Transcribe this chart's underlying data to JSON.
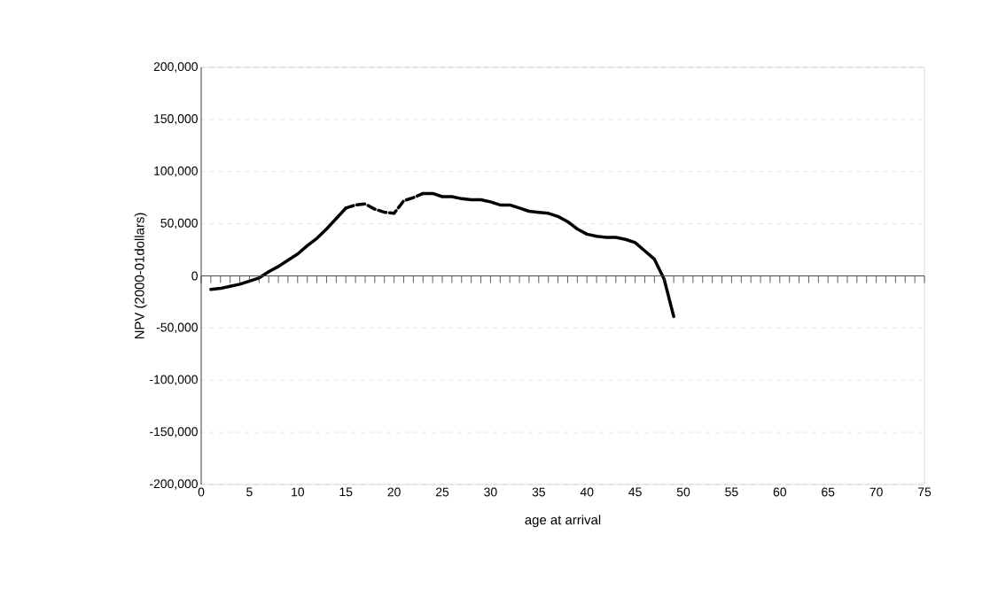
{
  "chart_data": {
    "type": "line",
    "xlabel": "age at arrival",
    "ylabel": "NPV (2000-01dollars)",
    "series": [
      {
        "color": "#000000",
        "line_style": "solid",
        "x": [
          1,
          2,
          3,
          4,
          5,
          6,
          7,
          8,
          9,
          10,
          11,
          12,
          13,
          14,
          15
        ],
        "values": [
          -13000,
          -12000,
          -10000,
          -8000,
          -5000,
          -2000,
          4000,
          9000,
          15000,
          21000,
          29000,
          36000,
          45000,
          55000,
          65000
        ]
      },
      {
        "color": "#000000",
        "line_style": "dashed",
        "x": [
          15,
          16,
          17,
          18,
          19,
          20,
          21,
          22,
          23
        ],
        "values": [
          65000,
          68000,
          69000,
          64000,
          61000,
          60000,
          72000,
          75000,
          79000
        ]
      },
      {
        "color": "#000000",
        "line_style": "solid",
        "x": [
          23,
          24,
          25,
          26,
          27,
          28,
          29,
          30,
          31,
          32,
          33,
          34,
          35,
          36,
          37,
          38,
          39,
          40,
          41,
          42,
          43,
          44,
          45,
          46,
          47,
          48,
          49
        ],
        "values": [
          79000,
          79000,
          76000,
          76000,
          74000,
          73000,
          73000,
          71000,
          68000,
          68000,
          65000,
          62000,
          61000,
          60000,
          57000,
          52000,
          45000,
          40000,
          38000,
          37000,
          37000,
          35000,
          32000,
          24000,
          16000,
          -3000,
          -39000
        ]
      }
    ],
    "xlim": [
      0,
      75
    ],
    "xticks": [
      0,
      5,
      10,
      15,
      20,
      25,
      30,
      35,
      40,
      45,
      50,
      55,
      60,
      65,
      70,
      75
    ],
    "ylim": [
      -200000,
      200000
    ],
    "yticks": [
      {
        "value": -200000,
        "label": "-200,000"
      },
      {
        "value": -150000,
        "label": "-150,000"
      },
      {
        "value": -100000,
        "label": "-100,000"
      },
      {
        "value": -50000,
        "label": "-50,000"
      },
      {
        "value": 0,
        "label": "0"
      },
      {
        "value": 50000,
        "label": "50,000"
      },
      {
        "value": 100000,
        "label": "100,000"
      },
      {
        "value": 150000,
        "label": "150,000"
      },
      {
        "value": 200000,
        "label": "200,000"
      }
    ],
    "grid": "y",
    "marker": "none"
  }
}
